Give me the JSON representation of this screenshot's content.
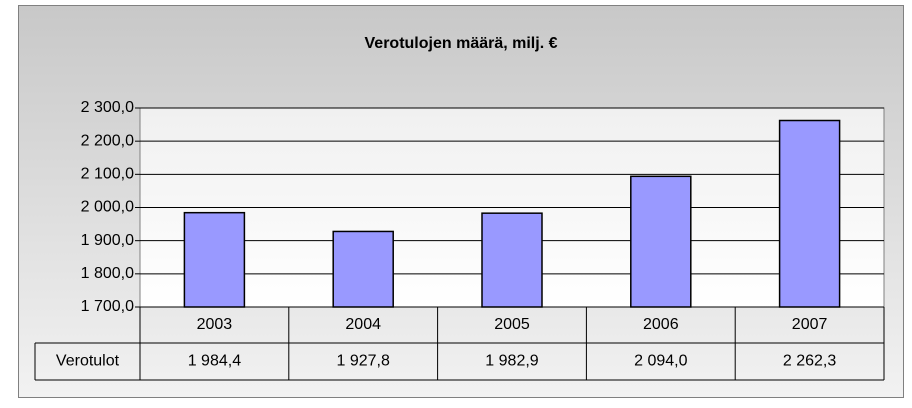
{
  "chart_data": {
    "type": "bar",
    "title": "Verotulojen määrä, milj. €",
    "categories": [
      "2003",
      "2004",
      "2005",
      "2006",
      "2007"
    ],
    "series": [
      {
        "name": "Verotulot",
        "color": "#9999ff",
        "values": [
          1984.4,
          1927.8,
          1982.9,
          2094.0,
          2262.3
        ],
        "value_labels": [
          "1 984,4",
          "1 927,8",
          "1 982,9",
          "2 094,0",
          "2 262,3"
        ]
      }
    ],
    "ylim": [
      1700,
      2300
    ],
    "yticks": [
      {
        "value": 1700,
        "label": "1 700,0"
      },
      {
        "value": 1800,
        "label": "1 800,0"
      },
      {
        "value": 1900,
        "label": "1 900,0"
      },
      {
        "value": 2000,
        "label": "2 000,0"
      },
      {
        "value": 2100,
        "label": "2 100,0"
      },
      {
        "value": 2200,
        "label": "2 200,0"
      },
      {
        "value": 2300,
        "label": "2 300,0"
      }
    ],
    "grid": true
  }
}
